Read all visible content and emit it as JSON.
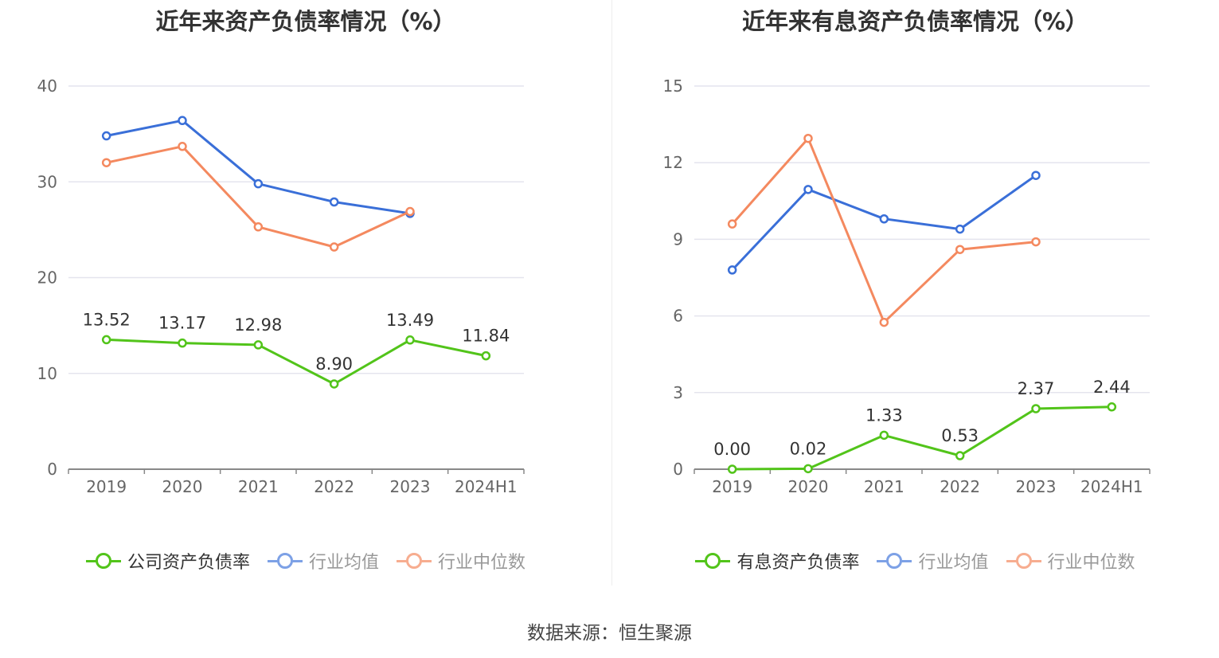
{
  "colors": {
    "company": "#52c41a",
    "average": "#3a6fd8",
    "median": "#f4895f",
    "grid": "#e4e4ee",
    "axis": "#888888",
    "tick": "#666666"
  },
  "source_text": "数据来源：恒生聚源",
  "chart_data": [
    {
      "type": "line",
      "title": "近年来资产负债率情况（%）",
      "categories": [
        "2019",
        "2020",
        "2021",
        "2022",
        "2023",
        "2024H1"
      ],
      "ylim": [
        0,
        40
      ],
      "yticks": [
        0,
        10,
        20,
        30,
        40
      ],
      "grid": true,
      "legend_position": "bottom",
      "series": [
        {
          "name": "公司资产负债率",
          "key": "company",
          "values": [
            13.52,
            13.17,
            12.98,
            8.9,
            13.49,
            11.84
          ],
          "labels": [
            "13.52",
            "13.17",
            "12.98",
            "8.90",
            "13.49",
            "11.84"
          ]
        },
        {
          "name": "行业均值",
          "key": "average",
          "values": [
            34.8,
            36.4,
            29.8,
            27.9,
            26.7,
            null
          ]
        },
        {
          "name": "行业中位数",
          "key": "median",
          "values": [
            32.0,
            33.7,
            25.3,
            23.2,
            26.9,
            null
          ]
        }
      ]
    },
    {
      "type": "line",
      "title": "近年来有息资产负债率情况（%）",
      "categories": [
        "2019",
        "2020",
        "2021",
        "2022",
        "2023",
        "2024H1"
      ],
      "ylim": [
        0,
        15
      ],
      "yticks": [
        0,
        3,
        6,
        9,
        12,
        15
      ],
      "grid": true,
      "legend_position": "bottom",
      "series": [
        {
          "name": "有息资产负债率",
          "key": "company",
          "values": [
            0.0,
            0.02,
            1.33,
            0.53,
            2.37,
            2.44
          ],
          "labels": [
            "0.00",
            "0.02",
            "1.33",
            "0.53",
            "2.37",
            "2.44"
          ]
        },
        {
          "name": "行业均值",
          "key": "average",
          "values": [
            7.8,
            10.95,
            9.8,
            9.4,
            11.5,
            null
          ]
        },
        {
          "name": "行业中位数",
          "key": "median",
          "values": [
            9.6,
            12.95,
            5.75,
            8.6,
            8.9,
            null
          ]
        }
      ]
    }
  ]
}
